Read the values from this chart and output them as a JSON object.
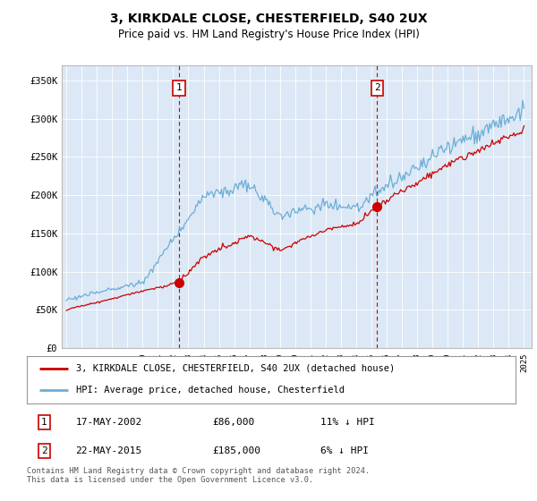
{
  "title": "3, KIRKDALE CLOSE, CHESTERFIELD, S40 2UX",
  "subtitle": "Price paid vs. HM Land Registry's House Price Index (HPI)",
  "hpi_label": "HPI: Average price, detached house, Chesterfield",
  "property_label": "3, KIRKDALE CLOSE, CHESTERFIELD, S40 2UX (detached house)",
  "sale1_date": "17-MAY-2002",
  "sale1_price": 86000,
  "sale1_label": "11% ↓ HPI",
  "sale2_date": "22-MAY-2015",
  "sale2_price": 185000,
  "sale2_label": "6% ↓ HPI",
  "footer": "Contains HM Land Registry data © Crown copyright and database right 2024.\nThis data is licensed under the Open Government Licence v3.0.",
  "hpi_color": "#6baed6",
  "property_color": "#cc0000",
  "annotation_box_color": "#cc0000",
  "vline_color": "#cc0000",
  "background_color": "#dce8f5",
  "ylim": [
    0,
    370000
  ],
  "yticks": [
    0,
    50000,
    100000,
    150000,
    200000,
    250000,
    300000,
    350000
  ],
  "xlim_start": 1994.7,
  "xlim_end": 2025.5
}
